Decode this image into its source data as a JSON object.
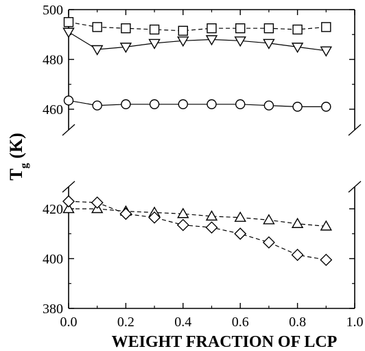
{
  "chart_data": {
    "type": "scatter",
    "title": "",
    "xlabel": "WEIGHT FRACTION OF LCP",
    "ylabel_main": "T",
    "ylabel_sub": "g",
    "ylabel_unit": "(K)",
    "xlim": [
      0.0,
      1.0
    ],
    "ylim": [
      380,
      500
    ],
    "axis_break": [
      425,
      455
    ],
    "x_ticks": [
      0.0,
      0.2,
      0.4,
      0.6,
      0.8,
      1.0
    ],
    "x_tick_labels": [
      "0.0",
      "0.2",
      "0.4",
      "0.6",
      "0.8",
      "1.0"
    ],
    "y_ticks": [
      380,
      400,
      420,
      460,
      480,
      500
    ],
    "y_tick_labels": [
      "380",
      "400",
      "420",
      "460",
      "480",
      "500"
    ],
    "grid": false,
    "series": [
      {
        "marker": "square",
        "line": "dashed",
        "x": [
          0.0,
          0.1,
          0.2,
          0.3,
          0.4,
          0.5,
          0.6,
          0.7,
          0.8,
          0.9
        ],
        "y": [
          495,
          493,
          492.5,
          492,
          491.5,
          492.5,
          492.5,
          492.5,
          492,
          493
        ]
      },
      {
        "marker": "triangle-down",
        "line": "solid",
        "x": [
          0.0,
          0.1,
          0.2,
          0.3,
          0.4,
          0.5,
          0.6,
          0.7,
          0.8,
          0.9
        ],
        "y": [
          491,
          484,
          485,
          486.5,
          487.5,
          488,
          487.5,
          486.5,
          485,
          483.5
        ]
      },
      {
        "marker": "circle",
        "line": "solid",
        "x": [
          0.0,
          0.1,
          0.2,
          0.3,
          0.4,
          0.5,
          0.6,
          0.7,
          0.8,
          0.9
        ],
        "y": [
          463.5,
          461.5,
          462,
          462,
          462,
          462,
          462,
          461.5,
          461,
          461
        ]
      },
      {
        "marker": "triangle-up",
        "line": "dashed",
        "x": [
          0.0,
          0.1,
          0.2,
          0.3,
          0.4,
          0.5,
          0.6,
          0.7,
          0.8,
          0.9
        ],
        "y": [
          420,
          420,
          419,
          418.5,
          418,
          417,
          416.5,
          415.5,
          414,
          413
        ]
      },
      {
        "marker": "diamond",
        "line": "dashed",
        "x": [
          0.0,
          0.1,
          0.2,
          0.3,
          0.4,
          0.5,
          0.6,
          0.7,
          0.8,
          0.9
        ],
        "y": [
          423,
          422.5,
          418,
          416.5,
          413.5,
          412.5,
          410,
          406.5,
          401.5,
          399.5
        ]
      }
    ]
  }
}
